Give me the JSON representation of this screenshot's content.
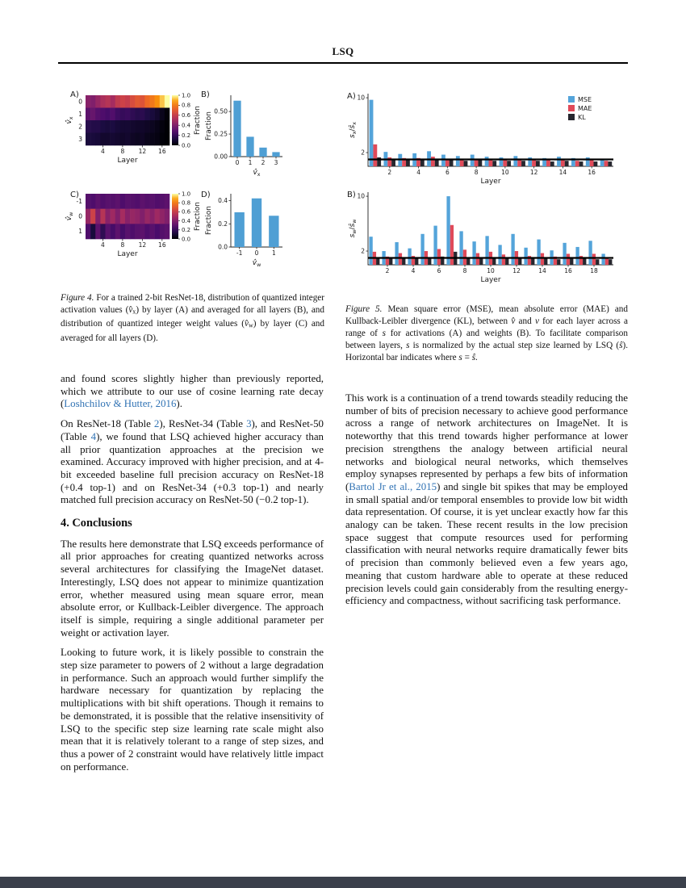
{
  "header": {
    "title": "LSQ"
  },
  "colors": {
    "bar_blue": "#4f9fd4",
    "mse": "#54a4da",
    "mae": "#e04a59",
    "kl": "#26262e",
    "link": "#3173b4"
  },
  "figure4": {
    "colorbar": {
      "label": "Fraction",
      "ticks": [
        "1.0",
        "0.8",
        "0.6",
        "0.4",
        "0.2",
        "0.0"
      ]
    },
    "panelA": {
      "label": "A)",
      "type": "heatmap",
      "xlabel": "Layer",
      "ylabel_runs": [
        {
          "t": "v̂",
          "s": "it"
        },
        {
          "t": "x",
          "s": "sub"
        }
      ],
      "rows": [
        "0",
        "1",
        "2",
        "3"
      ],
      "xticks": [
        4,
        8,
        12,
        16
      ],
      "values": [
        [
          0.42,
          0.4,
          0.46,
          0.52,
          0.55,
          0.5,
          0.58,
          0.62,
          0.6,
          0.66,
          0.7,
          0.68,
          0.75,
          0.79,
          0.85,
          0.93,
          1.0
        ],
        [
          0.3,
          0.33,
          0.28,
          0.26,
          0.24,
          0.27,
          0.22,
          0.2,
          0.21,
          0.18,
          0.16,
          0.17,
          0.14,
          0.12,
          0.09,
          0.05,
          0.01
        ],
        [
          0.16,
          0.15,
          0.15,
          0.13,
          0.12,
          0.13,
          0.11,
          0.1,
          0.1,
          0.09,
          0.08,
          0.08,
          0.07,
          0.06,
          0.04,
          0.02,
          0.0
        ],
        [
          0.12,
          0.12,
          0.11,
          0.09,
          0.09,
          0.1,
          0.09,
          0.08,
          0.09,
          0.07,
          0.06,
          0.07,
          0.05,
          0.04,
          0.03,
          0.01,
          0.0
        ]
      ]
    },
    "panelB": {
      "label": "B)",
      "type": "bar",
      "ylabel": "Fraction",
      "categories": [
        "0",
        "1",
        "2",
        "3"
      ],
      "values": [
        0.62,
        0.22,
        0.1,
        0.05
      ],
      "yticks": [
        "0.00",
        "0.25",
        "0.50"
      ],
      "ymax": 0.68,
      "xlabel_runs": [
        {
          "t": "v̂",
          "s": "it"
        },
        {
          "t": "x",
          "s": "sub"
        }
      ]
    },
    "panelC": {
      "label": "C)",
      "type": "heatmap",
      "xlabel": "Layer",
      "ylabel_runs": [
        {
          "t": "v̂",
          "s": "it"
        },
        {
          "t": "w",
          "s": "sub"
        }
      ],
      "rows": [
        "-1",
        "0",
        "1"
      ],
      "xticks": [
        4,
        8,
        12,
        16
      ],
      "values": [
        [
          0.28,
          0.26,
          0.3,
          0.27,
          0.29,
          0.28,
          0.3,
          0.26,
          0.29,
          0.28,
          0.27,
          0.3,
          0.28,
          0.29,
          0.27,
          0.28,
          0.3
        ],
        [
          0.46,
          0.62,
          0.4,
          0.55,
          0.42,
          0.48,
          0.4,
          0.5,
          0.42,
          0.46,
          0.44,
          0.4,
          0.46,
          0.42,
          0.48,
          0.44,
          0.4
        ],
        [
          0.26,
          0.12,
          0.3,
          0.18,
          0.29,
          0.24,
          0.3,
          0.24,
          0.29,
          0.26,
          0.29,
          0.3,
          0.26,
          0.29,
          0.25,
          0.28,
          0.3
        ]
      ]
    },
    "panelD": {
      "label": "D)",
      "type": "bar",
      "ylabel": "Fraction",
      "categories": [
        "-1",
        "0",
        "1"
      ],
      "values": [
        0.3,
        0.42,
        0.27
      ],
      "yticks": [
        "0.0",
        "0.2",
        "0.4"
      ],
      "ymax": 0.46,
      "xlabel_runs": [
        {
          "t": "v̂",
          "s": "it"
        },
        {
          "t": "w",
          "s": "sub"
        }
      ]
    },
    "caption_runs": [
      {
        "t": "Figure 4.",
        "s": "it"
      },
      {
        "t": " For a trained 2-bit ResNet-18, distribution of quantized integer activation values ("
      },
      {
        "t": "v̂",
        "s": "it"
      },
      {
        "t": "x",
        "s": "sub"
      },
      {
        "t": ") by layer (A) and averaged for all layers (B), and distribution of quantized integer weight values ("
      },
      {
        "t": "v̂",
        "s": "it"
      },
      {
        "t": "w",
        "s": "sub"
      },
      {
        "t": ") by layer (C) and averaged for all layers (D)."
      }
    ]
  },
  "figure5": {
    "legend": [
      {
        "label": "MSE",
        "color": "#54a4da"
      },
      {
        "label": "MAE",
        "color": "#e04a59"
      },
      {
        "label": "KL",
        "color": "#26262e"
      }
    ],
    "panelA": {
      "label": "A)",
      "type": "grouped-bar",
      "xlabel": "Layer",
      "ylabel_runs": [
        {
          "t": "s",
          "s": "it"
        },
        {
          "t": "x",
          "s": "sub"
        },
        {
          "t": "/"
        },
        {
          "t": "ŝ",
          "s": "it"
        },
        {
          "t": "x",
          "s": "sub"
        }
      ],
      "yticks": [
        2,
        10
      ],
      "ymax": 10.6,
      "hline": 1,
      "xticks": [
        2,
        4,
        6,
        8,
        10,
        12,
        14,
        16
      ],
      "series": [
        {
          "name": "MSE",
          "values": [
            9.7,
            2.1,
            1.8,
            1.9,
            2.2,
            1.7,
            1.5,
            1.7,
            1.4,
            1.3,
            1.5,
            1.3,
            1.2,
            1.4,
            1.2,
            1.3,
            1.1
          ]
        },
        {
          "name": "MAE",
          "values": [
            3.2,
            1.3,
            1.2,
            1.2,
            1.4,
            1.1,
            1.0,
            1.1,
            1.0,
            0.9,
            1.0,
            0.9,
            0.9,
            0.9,
            0.8,
            0.9,
            0.8
          ]
        },
        {
          "name": "KL",
          "values": [
            1.3,
            1.0,
            0.9,
            1.0,
            0.9,
            0.9,
            0.8,
            0.9,
            0.8,
            0.8,
            0.8,
            0.8,
            0.7,
            0.8,
            0.7,
            0.7,
            0.7
          ]
        }
      ]
    },
    "panelB": {
      "label": "B)",
      "type": "grouped-bar",
      "xlabel": "Layer",
      "ylabel_runs": [
        {
          "t": "s",
          "s": "it"
        },
        {
          "t": "w",
          "s": "sub"
        },
        {
          "t": "/"
        },
        {
          "t": "ŝ",
          "s": "it"
        },
        {
          "t": "w",
          "s": "sub"
        }
      ],
      "yticks": [
        2,
        10
      ],
      "ymax": 10.6,
      "hline": 1,
      "xticks": [
        2,
        4,
        6,
        8,
        10,
        12,
        14,
        16,
        18
      ],
      "series": [
        {
          "name": "MSE",
          "values": [
            4.1,
            2.0,
            3.3,
            2.4,
            4.5,
            5.7,
            10.0,
            4.9,
            3.4,
            4.2,
            2.9,
            4.5,
            2.5,
            3.7,
            2.1,
            3.2,
            2.6,
            3.5,
            1.6
          ]
        },
        {
          "name": "MAE",
          "values": [
            1.9,
            1.2,
            1.7,
            1.3,
            2.0,
            2.3,
            5.8,
            2.2,
            1.7,
            1.9,
            1.5,
            2.0,
            1.3,
            1.7,
            1.2,
            1.6,
            1.3,
            1.6,
            1.0
          ]
        },
        {
          "name": "KL",
          "values": [
            1.1,
            0.9,
            1.0,
            0.9,
            1.1,
            1.2,
            1.9,
            1.1,
            1.0,
            1.0,
            0.9,
            1.0,
            0.9,
            1.0,
            0.8,
            0.9,
            0.9,
            0.8,
            0.8
          ]
        }
      ]
    },
    "caption_runs": [
      {
        "t": "Figure 5.",
        "s": "it"
      },
      {
        "t": " Mean square error (MSE), mean absolute error (MAE) and Kullback-Leibler divergence (KL), between "
      },
      {
        "t": "v̂",
        "s": "it"
      },
      {
        "t": " and "
      },
      {
        "t": "v",
        "s": "it"
      },
      {
        "t": " for each layer across a range of "
      },
      {
        "t": "s",
        "s": "it"
      },
      {
        "t": " for activations (A) and weights (B). To facilitate comparison between layers, "
      },
      {
        "t": "s",
        "s": "it"
      },
      {
        "t": " is normalized by the actual step size learned by LSQ ("
      },
      {
        "t": "ŝ",
        "s": "it"
      },
      {
        "t": "). Horizontal bar indicates where "
      },
      {
        "t": "s",
        "s": "it"
      },
      {
        "t": " = "
      },
      {
        "t": "ŝ",
        "s": "it"
      },
      {
        "t": "."
      }
    ]
  },
  "body": {
    "left": {
      "p1": [
        {
          "t": "and found scores slightly higher than previously reported, which we attribute to our use of cosine learning rate decay ("
        },
        {
          "t": "Loshchilov & Hutter, 2016",
          "s": "link"
        },
        {
          "t": ")."
        }
      ],
      "p2": [
        {
          "t": "On ResNet-18 (Table "
        },
        {
          "t": "2",
          "s": "link"
        },
        {
          "t": "), ResNet-34 (Table "
        },
        {
          "t": "3",
          "s": "link"
        },
        {
          "t": "), and ResNet-50 (Table "
        },
        {
          "t": "4",
          "s": "link"
        },
        {
          "t": "), we found that LSQ achieved higher accuracy than all prior quantization approaches at the precision we examined. Accuracy improved with higher precision, and at 4-bit exceeded baseline full precision accuracy on ResNet-18 (+0.4 top-1) and on ResNet-34 (+0.3 top-1) and nearly matched full precision accuracy on ResNet-50 (−0.2 top-1)."
        }
      ],
      "heading": "4. Conclusions",
      "p3": [
        {
          "t": "The results here demonstrate that LSQ exceeds performance of all prior approaches for creating quantized networks across several architectures for classifying the ImageNet dataset. Interestingly, LSQ does not appear to minimize quantization error, whether measured using mean square error, mean absolute error, or Kullback-Leibler divergence. The approach itself is simple, requiring a single additional parameter per weight or activation layer."
        }
      ],
      "p4": [
        {
          "t": "Looking to future work, it is likely possible to constrain the step size parameter to powers of 2 without a large degradation in performance. Such an approach would further simplify the hardware necessary for quantization by replacing the multiplications with bit shift operations. Though it remains to be demonstrated, it is possible that the relative insensitivity of LSQ to the specific step size learning rate scale might also mean that it is relatively tolerant to a range of step sizes, and thus a power of 2 constraint would have relatively little impact on performance."
        }
      ]
    },
    "right": {
      "p1": [
        {
          "t": "This work is a continuation of a trend towards steadily reducing the number of bits of precision necessary to achieve good performance across a range of network architectures on ImageNet. It is noteworthy that this trend towards higher performance at lower precision strengthens the analogy between artificial neural networks and biological neural networks, which themselves employ synapses represented by perhaps a few bits of information ("
        },
        {
          "t": "Bartol Jr et al., 2015",
          "s": "link"
        },
        {
          "t": ") and single bit spikes that may be employed in small spatial and/or temporal ensembles to provide low bit width data representation. Of course, it is yet unclear exactly how far this analogy can be taken. These recent results in the low precision space suggest that compute resources used for performing classification with neural networks require dramatically fewer bits of precision than commonly believed even a few years ago, meaning that custom hardware able to operate at these reduced precision levels could gain considerably from the resulting energy-efficiency and compactness, without sacrificing task performance."
        }
      ]
    }
  }
}
